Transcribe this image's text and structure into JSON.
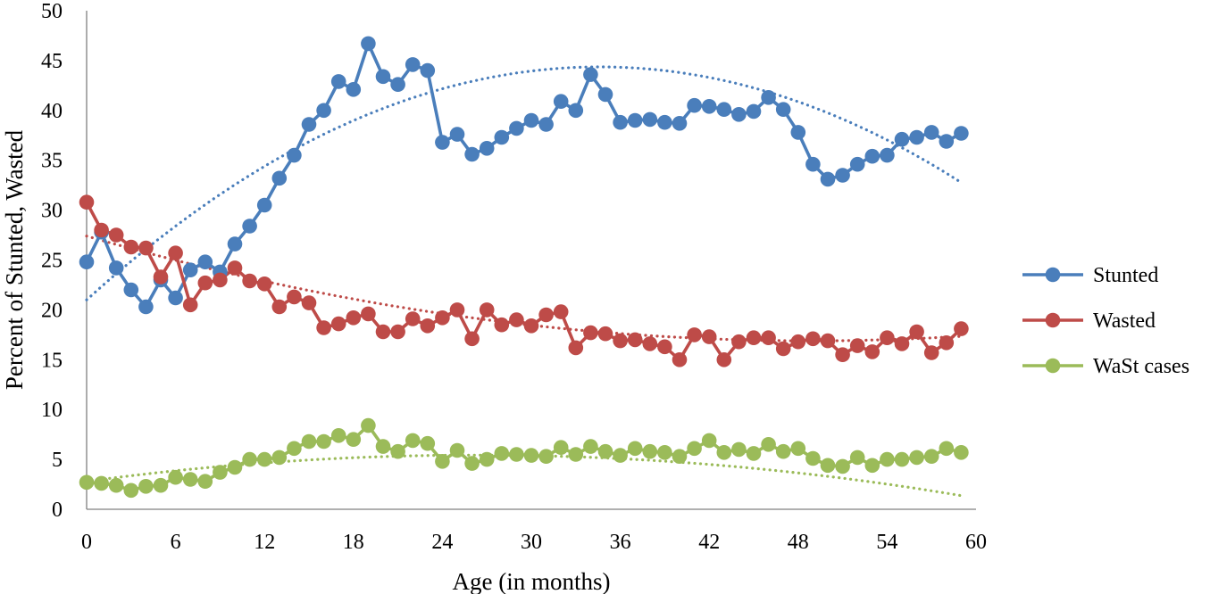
{
  "chart_data": {
    "type": "line",
    "xlabel": "Age (in months)",
    "ylabel": "Percent of Stunted, Wasted",
    "xlim": [
      0,
      60
    ],
    "ylim": [
      0,
      50
    ],
    "x_ticks": [
      "0",
      "6",
      "12",
      "18",
      "24",
      "30",
      "36",
      "42",
      "48",
      "54",
      "60"
    ],
    "y_ticks": [
      "0",
      "5",
      "10",
      "15",
      "20",
      "25",
      "30",
      "35",
      "40",
      "45",
      "50"
    ],
    "legend_position": "right",
    "grid": false,
    "x": [
      0,
      1,
      2,
      3,
      4,
      5,
      6,
      7,
      8,
      9,
      10,
      11,
      12,
      13,
      14,
      15,
      16,
      17,
      18,
      19,
      20,
      21,
      22,
      23,
      24,
      25,
      26,
      27,
      28,
      29,
      30,
      31,
      32,
      33,
      34,
      35,
      36,
      37,
      38,
      39,
      40,
      41,
      42,
      43,
      44,
      45,
      46,
      47,
      48,
      49,
      50,
      51,
      52,
      53,
      54,
      55,
      56,
      57,
      58,
      59
    ],
    "series": [
      {
        "name": "Stunted",
        "color": "#4a7ebb",
        "trendline": "polynomial",
        "trend_coef": [
          21.0,
          1.35,
          -0.0195
        ],
        "values": [
          24.8,
          27.8,
          24.2,
          22.0,
          20.3,
          23.0,
          21.2,
          24.0,
          24.8,
          23.8,
          26.6,
          28.4,
          30.5,
          33.2,
          35.5,
          38.6,
          40.0,
          42.9,
          42.1,
          46.7,
          43.4,
          42.6,
          44.6,
          44.0,
          36.8,
          37.6,
          35.6,
          36.2,
          37.3,
          38.2,
          39.0,
          38.6,
          40.9,
          40.0,
          43.6,
          41.6,
          38.8,
          39.0,
          39.1,
          38.8,
          38.7,
          40.5,
          40.4,
          40.1,
          39.6,
          39.9,
          41.3,
          40.1,
          37.8,
          34.6,
          33.1,
          33.5,
          34.6,
          35.4,
          35.5,
          37.1,
          37.3,
          37.8,
          36.9,
          37.7
        ]
      },
      {
        "name": "Wasted",
        "color": "#be4b48",
        "trendline": "polynomial",
        "trend_coef": [
          27.4,
          -0.43,
          0.0044
        ],
        "values": [
          30.8,
          28.0,
          27.5,
          26.3,
          26.2,
          23.3,
          25.7,
          20.5,
          22.7,
          23.0,
          24.2,
          22.9,
          22.6,
          20.3,
          21.3,
          20.7,
          18.2,
          18.6,
          19.2,
          19.6,
          17.8,
          17.8,
          19.1,
          18.4,
          19.2,
          20.0,
          17.1,
          20.0,
          18.5,
          19.0,
          18.4,
          19.5,
          19.8,
          16.2,
          17.7,
          17.6,
          16.9,
          17.0,
          16.6,
          16.3,
          15.0,
          17.5,
          17.3,
          15.0,
          16.8,
          17.2,
          17.2,
          16.1,
          16.8,
          17.1,
          16.9,
          15.5,
          16.4,
          15.8,
          17.2,
          16.6,
          17.8,
          15.7,
          16.7,
          18.1
        ]
      },
      {
        "name": "WaSt cases",
        "color": "#9bbb59",
        "trendline": "polynomial",
        "trend_coef": [
          2.8,
          0.2,
          -0.0038
        ],
        "values": [
          2.7,
          2.6,
          2.4,
          1.9,
          2.3,
          2.4,
          3.2,
          3.0,
          2.8,
          3.7,
          4.2,
          5.0,
          5.0,
          5.2,
          6.1,
          6.8,
          6.8,
          7.4,
          7.0,
          8.4,
          6.3,
          5.8,
          6.9,
          6.6,
          4.8,
          5.9,
          4.6,
          5.0,
          5.6,
          5.5,
          5.4,
          5.3,
          6.2,
          5.5,
          6.3,
          5.8,
          5.4,
          6.1,
          5.8,
          5.7,
          5.3,
          6.1,
          6.9,
          5.7,
          6.0,
          5.6,
          6.5,
          5.8,
          6.1,
          5.1,
          4.4,
          4.3,
          5.2,
          4.4,
          5.0,
          5.0,
          5.2,
          5.3,
          6.1,
          5.7
        ]
      }
    ]
  }
}
